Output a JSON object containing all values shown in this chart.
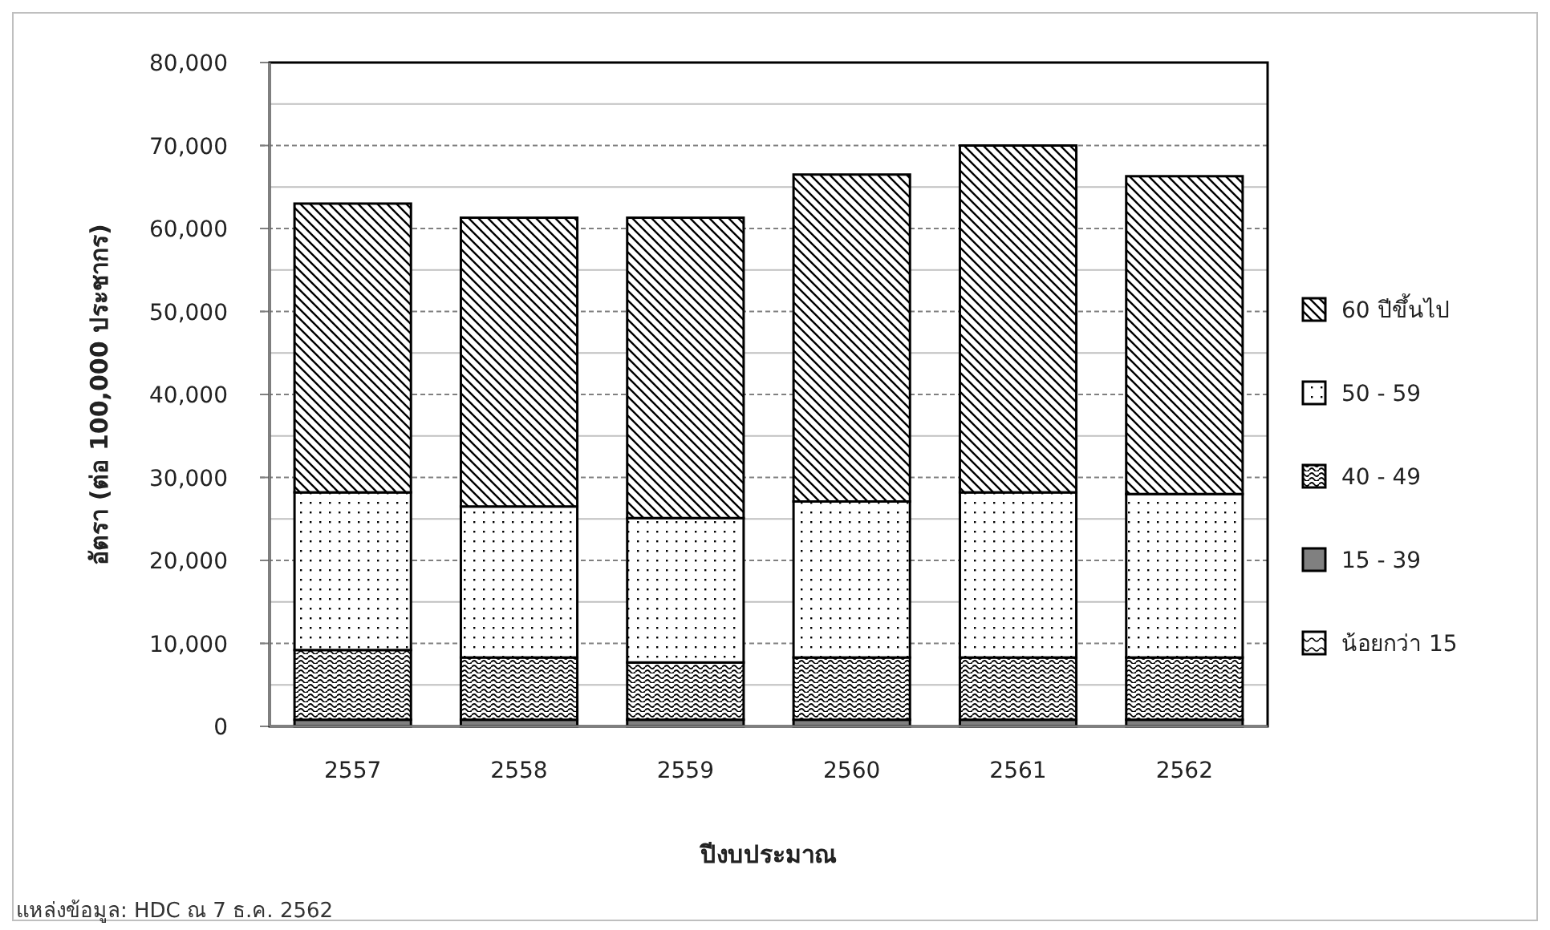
{
  "chart_data": {
    "type": "bar",
    "stacked": true,
    "ylabel": "อัตรา (ต่อ 100,000 ประชากร)",
    "xlabel": "ปีงบประมาณ",
    "categories": [
      "2557",
      "2558",
      "2559",
      "2560",
      "2561",
      "2562"
    ],
    "series": [
      {
        "name": "น้อยกว่า 15",
        "color": "#000000",
        "values": [
          null,
          null,
          null,
          null,
          null,
          null
        ]
      },
      {
        "name": "15 - 39",
        "color": "#808080",
        "values": [
          800,
          800,
          800,
          800,
          800,
          800
        ]
      },
      {
        "name": "40 - 49",
        "color": "#000000",
        "values": [
          8400,
          7500,
          6900,
          7500,
          7500,
          7500
        ]
      },
      {
        "name": "50 - 59",
        "color": "#000000",
        "values": [
          19000,
          18200,
          17400,
          18800,
          19900,
          19700
        ]
      },
      {
        "name": "60 ปีขึ้นไป",
        "color": "#000000",
        "values": [
          34800,
          34800,
          36200,
          39400,
          41800,
          38300
        ]
      }
    ],
    "ylim": [
      0,
      80000
    ],
    "yticks": [
      {
        "value": 0,
        "label": "0"
      },
      {
        "value": 10000,
        "label": "10,000"
      },
      {
        "value": 20000,
        "label": "20,000"
      },
      {
        "value": 30000,
        "label": "30,000"
      },
      {
        "value": 40000,
        "label": "40,000"
      },
      {
        "value": 50000,
        "label": "50,000"
      },
      {
        "value": 60000,
        "label": "60,000"
      },
      {
        "value": 70000,
        "label": "70,000"
      },
      {
        "value": 80000,
        "label": "80,000"
      }
    ],
    "grid": "y",
    "legend": "right",
    "annotations": [
      "แหล่งข้อมูล: HDC ณ 7 ธ.ค. 2562"
    ]
  }
}
